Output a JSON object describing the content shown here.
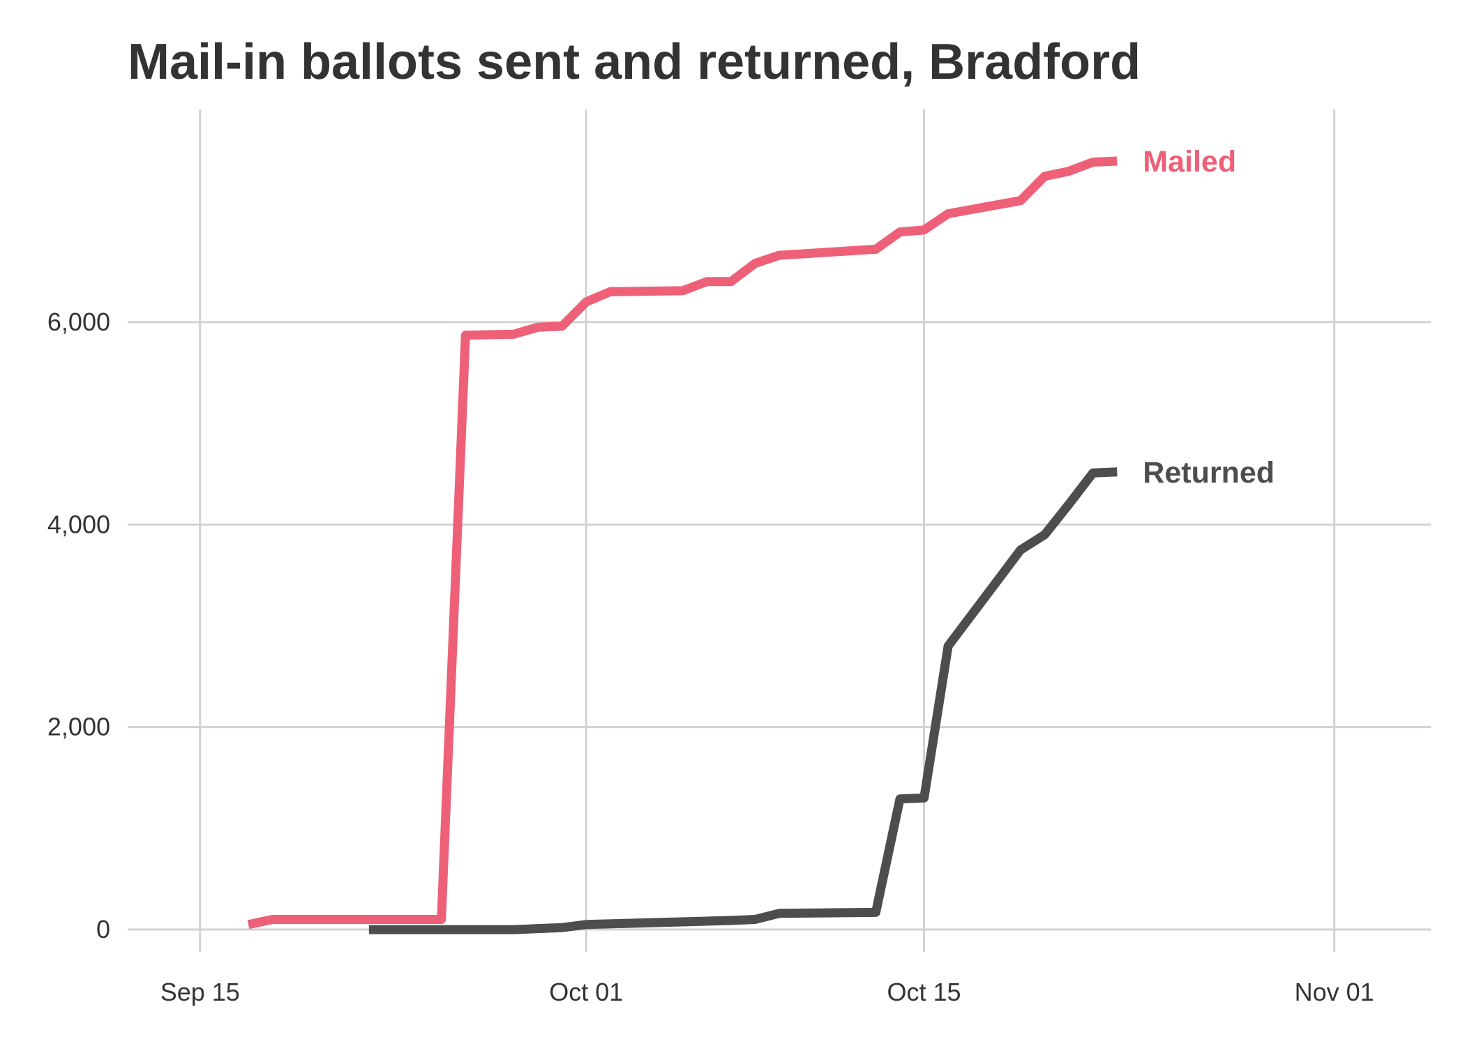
{
  "chart_data": {
    "type": "line",
    "title": "Mail-in ballots sent and returned, Bradford",
    "xlabel": "",
    "ylabel": "",
    "x_ticks": [
      "Sep 15",
      "Oct 01",
      "Oct 15",
      "Nov 01"
    ],
    "y_ticks": [
      "0",
      "2,000",
      "4,000",
      "6,000"
    ],
    "y_tick_values": [
      0,
      2000,
      4000,
      6000
    ],
    "x_range": [
      "2020-09-12",
      "2020-11-05"
    ],
    "y_range": [
      -220,
      8100
    ],
    "grid": true,
    "legend": "direct labels at line ends",
    "series": [
      {
        "name": "Mailed",
        "color": "#EE6077",
        "points": [
          [
            "2020-09-17",
            50
          ],
          [
            "2020-09-18",
            100
          ],
          [
            "2020-09-24",
            100
          ],
          [
            "2020-09-25",
            100
          ],
          [
            "2020-09-26",
            5870
          ],
          [
            "2020-09-28",
            5880
          ],
          [
            "2020-09-29",
            5950
          ],
          [
            "2020-09-30",
            5960
          ],
          [
            "2020-10-01",
            6200
          ],
          [
            "2020-10-02",
            6300
          ],
          [
            "2020-10-05",
            6310
          ],
          [
            "2020-10-06",
            6400
          ],
          [
            "2020-10-07",
            6400
          ],
          [
            "2020-10-08",
            6580
          ],
          [
            "2020-10-09",
            6660
          ],
          [
            "2020-10-13",
            6720
          ],
          [
            "2020-10-14",
            6890
          ],
          [
            "2020-10-15",
            6910
          ],
          [
            "2020-10-16",
            7070
          ],
          [
            "2020-10-19",
            7200
          ],
          [
            "2020-10-20",
            7440
          ],
          [
            "2020-10-21",
            7490
          ],
          [
            "2020-10-22",
            7580
          ],
          [
            "2020-10-23",
            7590
          ]
        ]
      },
      {
        "name": "Returned",
        "color": "#4D4D4D",
        "points": [
          [
            "2020-09-22",
            0
          ],
          [
            "2020-09-28",
            0
          ],
          [
            "2020-09-30",
            20
          ],
          [
            "2020-10-01",
            50
          ],
          [
            "2020-10-07",
            90
          ],
          [
            "2020-10-08",
            100
          ],
          [
            "2020-10-09",
            160
          ],
          [
            "2020-10-13",
            170
          ],
          [
            "2020-10-14",
            1290
          ],
          [
            "2020-10-15",
            1300
          ],
          [
            "2020-10-16",
            2800
          ],
          [
            "2020-10-19",
            3750
          ],
          [
            "2020-10-20",
            3900
          ],
          [
            "2020-10-21",
            4200
          ],
          [
            "2020-10-22",
            4510
          ],
          [
            "2020-10-23",
            4520
          ]
        ]
      }
    ]
  }
}
